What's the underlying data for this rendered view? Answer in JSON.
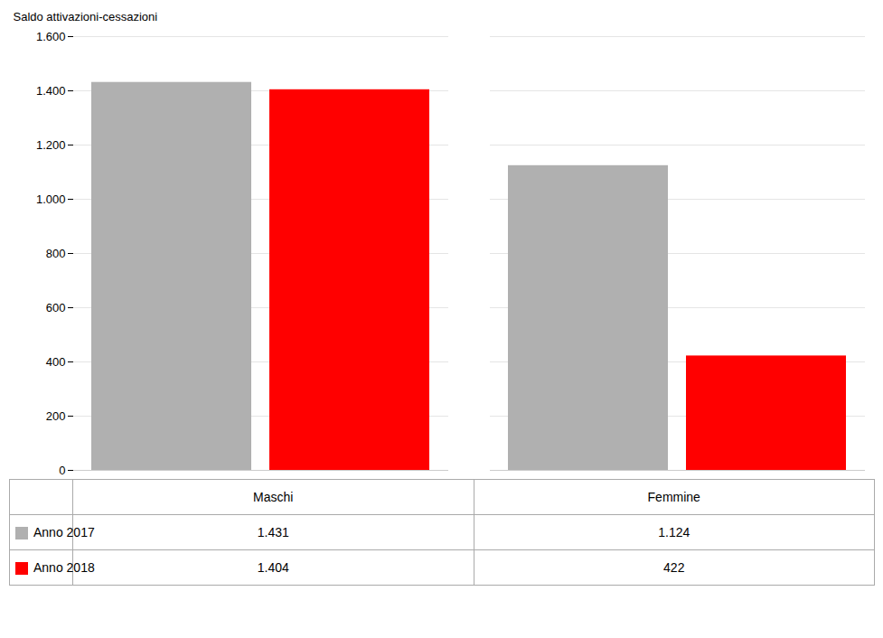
{
  "chart_data": {
    "type": "bar",
    "categories": [
      "Maschi",
      "Femmine"
    ],
    "series": [
      {
        "name": "Anno 2017",
        "color": "#b0b0b0",
        "values": [
          1431,
          1124
        ],
        "value_labels": [
          "1.431",
          "1.124"
        ]
      },
      {
        "name": "Anno 2018",
        "color": "#ff0000",
        "values": [
          1404,
          422
        ],
        "value_labels": [
          "1.404",
          "422"
        ]
      }
    ],
    "ylabel": "Saldo attivazioni-cessazioni",
    "ylim": [
      0,
      1600
    ],
    "yticks": [
      0,
      200,
      400,
      600,
      800,
      {
        "value": 1000,
        "label": "1.000"
      },
      {
        "value": 1200,
        "label": "1.200"
      },
      {
        "value": 1400,
        "label": "1.400"
      },
      {
        "value": 1600,
        "label": "1.600"
      }
    ],
    "grid": true,
    "legend": "bottom",
    "tick_labels": "y"
  }
}
